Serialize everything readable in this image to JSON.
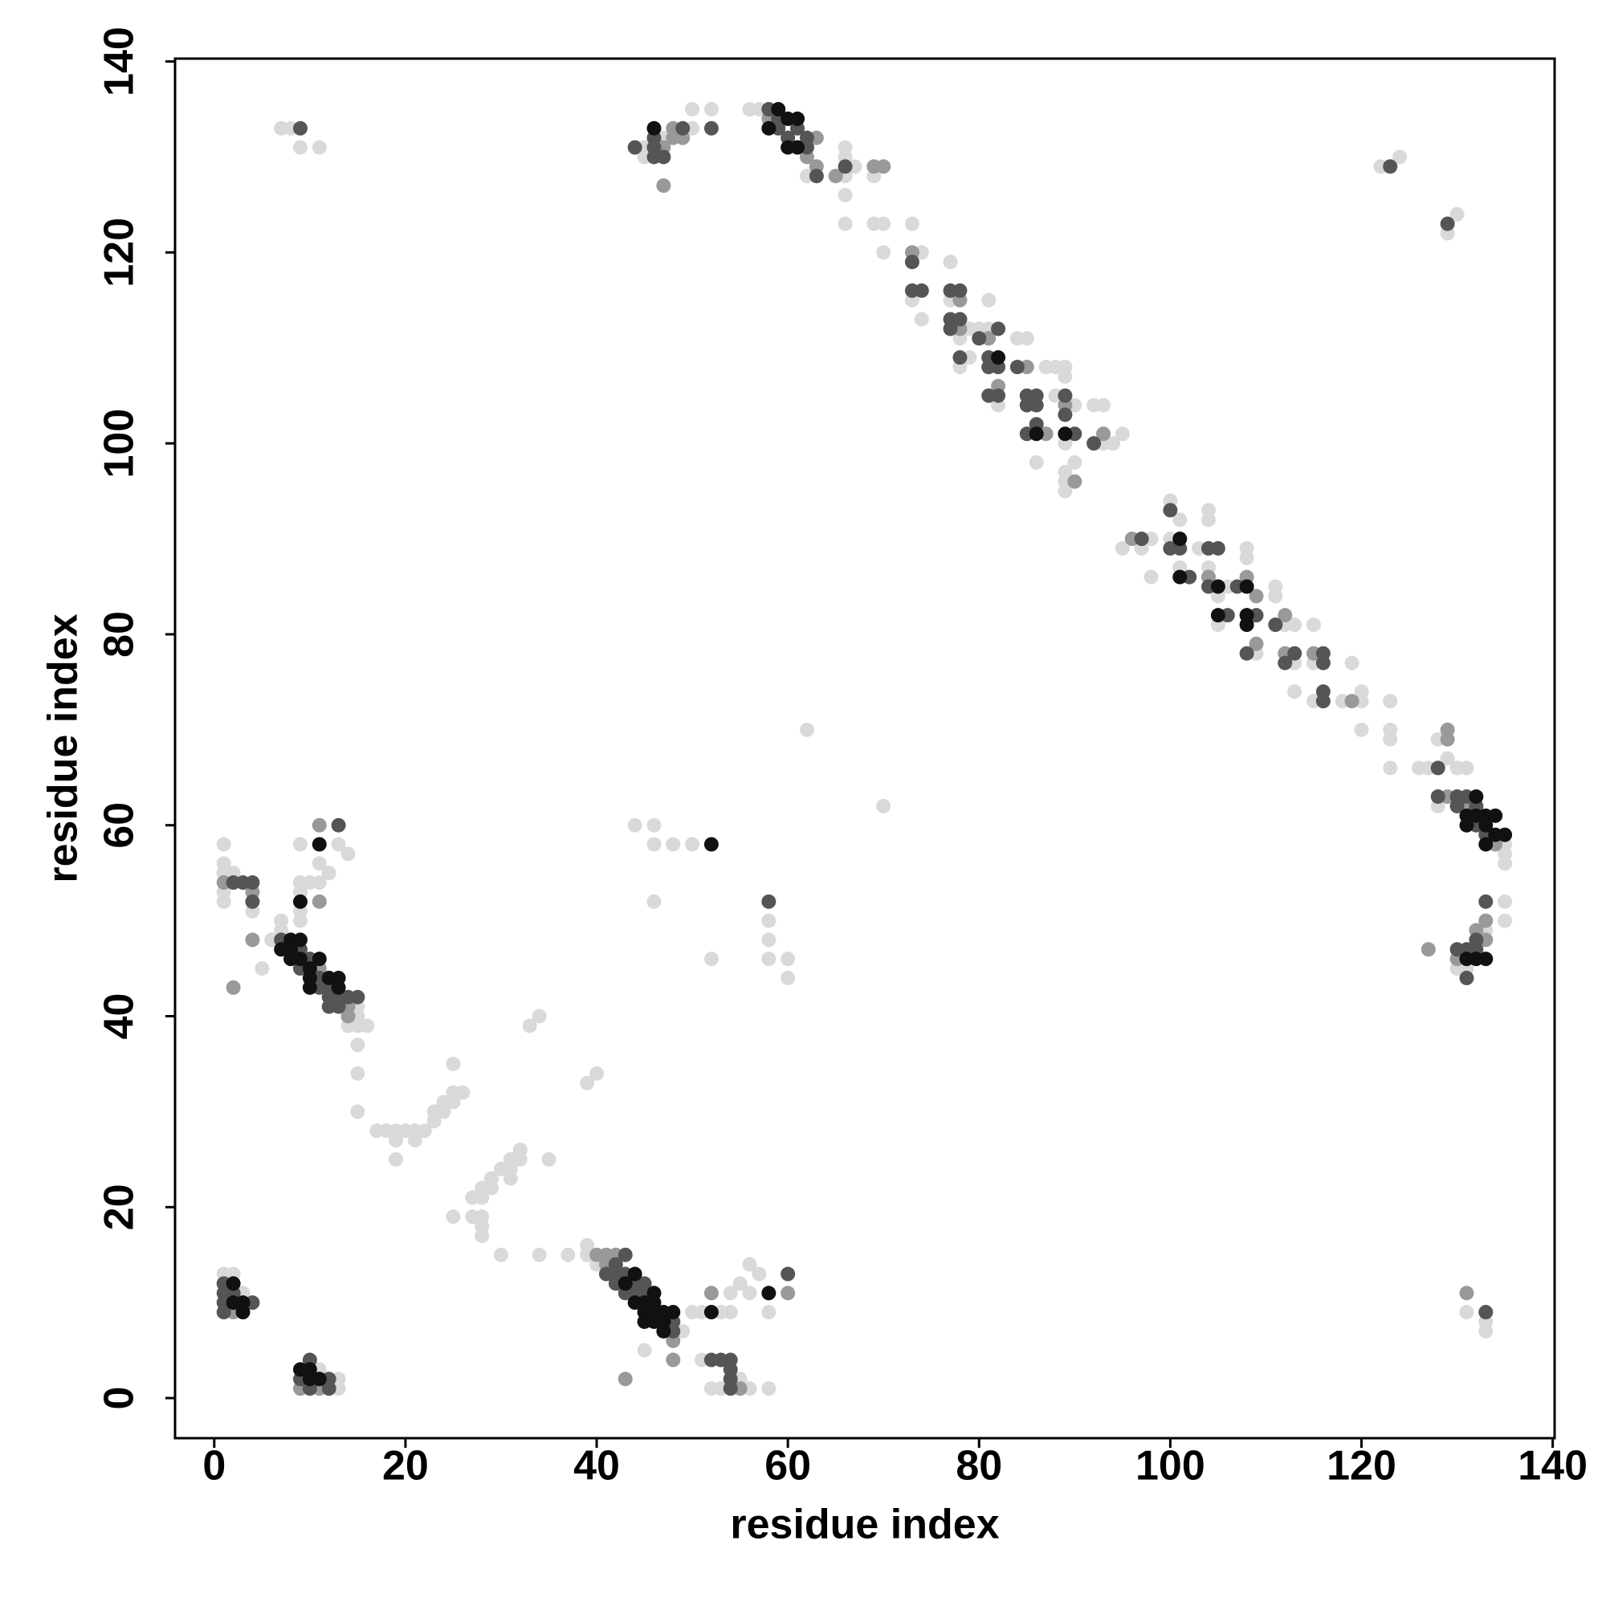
{
  "chart_data": {
    "type": "scatter",
    "xlabel": "residue index",
    "ylabel": "residue index",
    "xlim": [
      -4.1,
      140.2
    ],
    "ylim": [
      -4.2,
      140.3
    ],
    "xticks": [
      0,
      20,
      40,
      60,
      80,
      100,
      120,
      140
    ],
    "yticks": [
      0,
      20,
      40,
      60,
      80,
      100,
      120,
      140
    ],
    "grid": false,
    "series": [
      {
        "color": "#d9d9d9",
        "x": [
          7,
          8,
          9,
          11,
          45,
          45,
          47,
          50,
          50,
          52,
          56,
          57,
          62,
          66,
          66,
          66,
          66,
          67,
          66,
          69,
          69,
          70,
          70,
          73,
          74,
          73,
          74,
          77,
          77,
          79,
          80,
          81,
          81,
          78,
          78,
          79,
          82,
          84,
          85,
          87,
          88,
          89,
          89,
          88,
          90,
          86,
          89,
          90,
          89,
          89,
          89,
          92,
          93,
          93,
          94,
          95,
          95,
          97,
          98,
          98,
          100,
          101,
          100,
          101,
          103,
          104,
          104,
          104,
          105,
          106,
          105,
          108,
          108,
          109,
          111,
          111,
          112,
          113,
          113,
          113,
          115,
          115,
          115,
          118,
          119,
          120,
          120,
          120,
          123,
          123,
          123,
          123,
          126,
          127,
          128,
          129,
          130,
          131,
          128,
          135,
          135,
          135,
          135,
          135,
          133,
          131,
          130,
          62,
          70,
          122,
          124,
          130,
          129,
          131,
          133,
          133,
          1,
          1,
          1,
          2,
          1,
          1,
          4,
          5,
          6,
          7,
          7,
          14,
          15,
          15,
          15,
          16,
          15,
          15,
          15,
          9,
          9,
          9,
          9,
          9,
          10,
          11,
          11,
          12,
          13,
          14,
          17,
          18,
          19,
          19,
          19,
          20,
          21,
          21,
          22,
          23,
          23,
          24,
          24,
          25,
          25,
          25,
          26,
          25,
          27,
          27,
          28,
          28,
          28,
          28,
          28,
          29,
          29,
          30,
          30,
          31,
          31,
          31,
          32,
          32,
          33,
          34,
          34,
          35,
          37,
          39,
          40,
          39,
          39,
          40,
          40,
          49,
          45,
          50,
          51,
          53,
          54,
          54,
          55,
          56,
          56,
          57,
          58,
          51,
          55,
          56,
          52,
          53,
          58,
          44,
          46,
          46,
          48,
          50,
          46,
          58,
          58,
          58,
          60,
          60,
          52,
          1,
          2,
          3,
          11,
          13,
          13
        ],
        "values": [
          133,
          133,
          131,
          131,
          131,
          130,
          132,
          133,
          135,
          135,
          135,
          135,
          128,
          130,
          131,
          128,
          126,
          129,
          123,
          128,
          123,
          123,
          120,
          123,
          120,
          115,
          113,
          119,
          115,
          112,
          112,
          115,
          112,
          111,
          108,
          109,
          104,
          111,
          111,
          108,
          108,
          108,
          107,
          105,
          104,
          98,
          100,
          98,
          97,
          96,
          95,
          104,
          104,
          100,
          100,
          101,
          89,
          89,
          90,
          86,
          94,
          92,
          90,
          87,
          89,
          93,
          92,
          87,
          84,
          85,
          81,
          89,
          88,
          78,
          85,
          84,
          81,
          77,
          81,
          74,
          81,
          77,
          73,
          73,
          77,
          74,
          73,
          70,
          73,
          70,
          69,
          66,
          66,
          66,
          69,
          67,
          66,
          66,
          62,
          58,
          57,
          56,
          52,
          50,
          49,
          45,
          45,
          70,
          62,
          129,
          130,
          124,
          122,
          9,
          8,
          7,
          58,
          56,
          55,
          55,
          53,
          52,
          51,
          45,
          48,
          50,
          49,
          39,
          41,
          40,
          39,
          39,
          37,
          34,
          30,
          58,
          54,
          53,
          51,
          50,
          54,
          56,
          54,
          55,
          58,
          57,
          28,
          28,
          28,
          27,
          25,
          28,
          28,
          27,
          28,
          29,
          30,
          31,
          30,
          32,
          31,
          35,
          32,
          19,
          21,
          19,
          22,
          21,
          19,
          18,
          17,
          23,
          22,
          24,
          15,
          25,
          24,
          23,
          26,
          25,
          39,
          40,
          15,
          25,
          15,
          33,
          34,
          16,
          15,
          15,
          14,
          7,
          5,
          9,
          9,
          9,
          9,
          11,
          12,
          11,
          14,
          13,
          9,
          4,
          2,
          1,
          1,
          1,
          1,
          60,
          60,
          58,
          58,
          58,
          52,
          50,
          48,
          46,
          46,
          44,
          46,
          13,
          13,
          11,
          3,
          2,
          1
        ]
      },
      {
        "color": "#999999",
        "x": [
          47,
          47,
          48,
          48,
          49,
          58,
          62,
          63,
          63,
          65,
          69,
          70,
          73,
          78,
          78,
          81,
          82,
          85,
          89,
          87,
          90,
          93,
          96,
          104,
          108,
          109,
          109,
          112,
          112,
          115,
          119,
          129,
          129,
          129,
          131,
          134,
          133,
          132,
          133,
          130,
          127,
          131,
          1,
          4,
          4,
          2,
          11,
          14,
          14,
          11,
          11,
          40,
          41,
          41,
          42,
          48,
          48,
          43,
          52,
          60,
          55,
          2,
          9,
          11
        ],
        "values": [
          131,
          127,
          133,
          132,
          132,
          134,
          130,
          132,
          129,
          128,
          129,
          129,
          120,
          115,
          112,
          111,
          106,
          108,
          104,
          101,
          96,
          101,
          90,
          86,
          86,
          84,
          79,
          82,
          78,
          78,
          73,
          70,
          69,
          63,
          62,
          58,
          50,
          49,
          48,
          46,
          47,
          11,
          54,
          53,
          48,
          43,
          45,
          41,
          40,
          60,
          52,
          15,
          15,
          14,
          15,
          6,
          4,
          2,
          11,
          11,
          1,
          9,
          1,
          1
        ]
      },
      {
        "color": "#555555",
        "x": [
          9,
          44,
          46,
          46,
          46,
          47,
          49,
          52,
          59,
          59,
          60,
          61,
          62,
          62,
          63,
          66,
          73,
          73,
          74,
          77,
          78,
          77,
          78,
          77,
          80,
          82,
          78,
          81,
          81,
          82,
          82,
          81,
          84,
          85,
          86,
          85,
          86,
          89,
          85,
          86,
          89,
          90,
          92,
          58,
          58,
          97,
          100,
          100,
          101,
          102,
          104,
          105,
          104,
          106,
          107,
          109,
          108,
          111,
          113,
          112,
          116,
          116,
          116,
          116,
          128,
          128,
          130,
          131,
          130,
          132,
          132,
          133,
          133,
          132,
          131,
          132,
          130,
          131,
          123,
          129,
          133,
          2,
          3,
          4,
          4,
          7,
          9,
          9,
          10,
          11,
          11,
          12,
          12,
          12,
          13,
          13,
          14,
          15,
          13,
          41,
          42,
          43,
          42,
          42,
          43,
          43,
          44,
          44,
          45,
          45,
          48,
          48,
          60,
          52,
          53,
          54,
          54,
          54,
          54,
          1,
          1,
          2,
          1,
          4,
          1,
          10,
          9,
          12,
          10,
          12
        ],
        "values": [
          133,
          131,
          132,
          131,
          130,
          130,
          133,
          133,
          134,
          133,
          132,
          133,
          132,
          131,
          128,
          129,
          119,
          116,
          116,
          116,
          116,
          113,
          113,
          112,
          111,
          112,
          109,
          109,
          108,
          108,
          105,
          105,
          108,
          105,
          105,
          104,
          104,
          105,
          101,
          102,
          103,
          101,
          100,
          135,
          52,
          90,
          93,
          89,
          89,
          86,
          89,
          89,
          85,
          82,
          85,
          82,
          78,
          81,
          78,
          77,
          78,
          77,
          74,
          73,
          66,
          63,
          63,
          63,
          62,
          62,
          60,
          59,
          52,
          48,
          47,
          47,
          47,
          44,
          129,
          123,
          9,
          54,
          54,
          54,
          52,
          48,
          47,
          45,
          46,
          44,
          43,
          43,
          42,
          41,
          42,
          41,
          42,
          42,
          60,
          13,
          14,
          15,
          13,
          12,
          13,
          11,
          12,
          11,
          12,
          11,
          8,
          7,
          13,
          4,
          4,
          4,
          3,
          2,
          1,
          12,
          11,
          11,
          10,
          10,
          9,
          4,
          2,
          2,
          1,
          1
        ]
      },
      {
        "color": "#111111",
        "x": [
          46,
          58,
          59,
          60,
          60,
          61,
          61,
          82,
          86,
          89,
          101,
          101,
          105,
          105,
          108,
          108,
          108,
          132,
          131,
          131,
          132,
          133,
          133,
          134,
          133,
          134,
          135,
          131,
          132,
          133,
          7,
          8,
          8,
          8,
          9,
          9,
          10,
          10,
          11,
          10,
          12,
          13,
          13,
          9,
          11,
          43,
          44,
          44,
          45,
          45,
          45,
          46,
          46,
          46,
          46,
          47,
          47,
          47,
          48,
          52,
          58,
          52,
          2,
          2,
          3,
          3,
          9,
          10,
          11,
          10
        ],
        "values": [
          133,
          133,
          135,
          134,
          131,
          134,
          131,
          109,
          101,
          101,
          90,
          86,
          85,
          82,
          85,
          82,
          81,
          63,
          61,
          60,
          61,
          61,
          60,
          61,
          58,
          59,
          59,
          46,
          46,
          46,
          47,
          48,
          47,
          46,
          48,
          46,
          45,
          44,
          46,
          43,
          44,
          44,
          43,
          52,
          58,
          12,
          13,
          10,
          10,
          9,
          8,
          11,
          10,
          9,
          8,
          9,
          8,
          7,
          9,
          9,
          11,
          58,
          12,
          10,
          10,
          9,
          3,
          2,
          2,
          3
        ]
      }
    ]
  }
}
